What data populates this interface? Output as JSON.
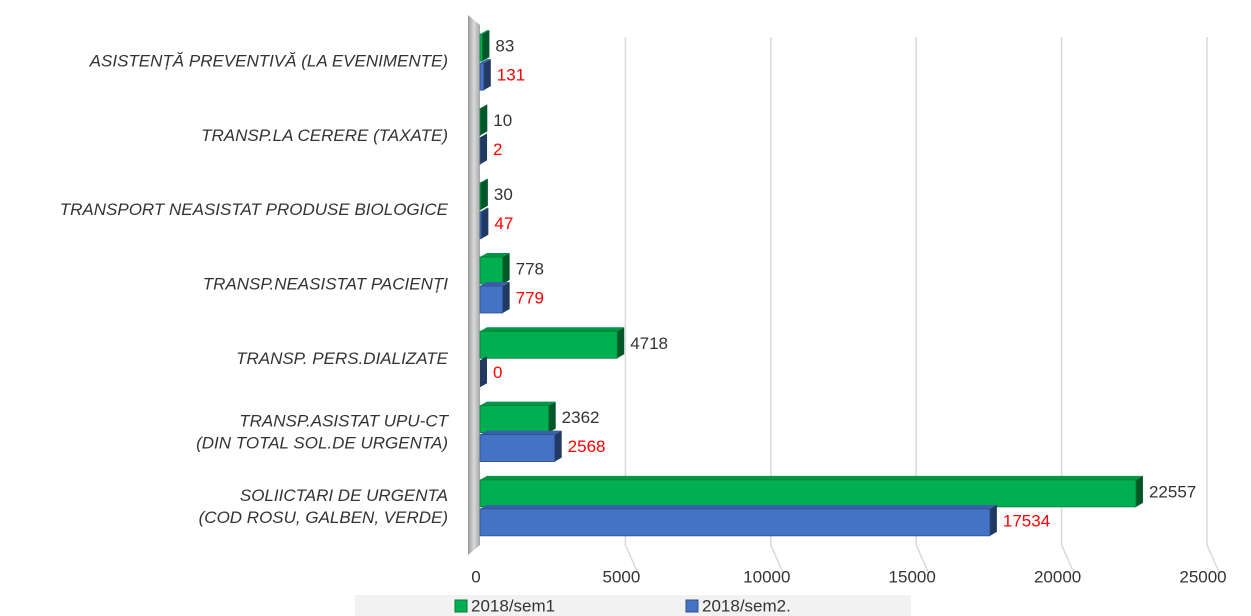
{
  "chart_data": {
    "type": "bar",
    "orientation": "horizontal",
    "categories": [
      "ASISTENȚĂ PREVENTIVĂ (LA EVENIMENTE)",
      "TRANSP.LA CERERE (TAXATE)",
      "TRANSPORT NEASISTAT PRODUSE BIOLOGICE",
      "TRANSP.NEASISTAT PACIENȚI",
      "TRANSP. PERS.DIALIZATE",
      "TRANSP.ASISTAT UPU-CT\n(DIN TOTAL SOL.DE URGENTA)",
      "SOLIICTARI DE URGENTA\n(COD ROSU, GALBEN, VERDE)"
    ],
    "series": [
      {
        "name": "2018/sem1",
        "color": "#00b050",
        "label_color": "#333333",
        "values": [
          83,
          10,
          30,
          778,
          4718,
          2362,
          22557
        ]
      },
      {
        "name": "2018/sem2.",
        "color": "#4472c4",
        "label_color": "#ff0000",
        "values": [
          131,
          2,
          47,
          779,
          0,
          2568,
          17534
        ]
      }
    ],
    "xlim": [
      0,
      25000
    ],
    "xticks": [
      0,
      5000,
      10000,
      15000,
      20000,
      25000
    ],
    "grid": true,
    "legend": "bottom"
  }
}
